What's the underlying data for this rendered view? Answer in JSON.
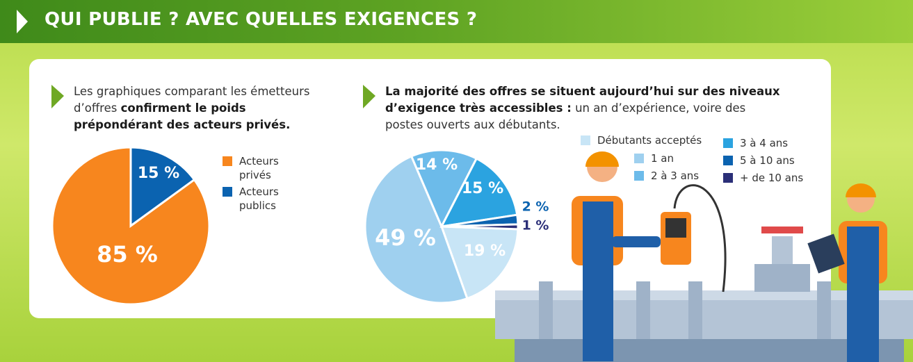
{
  "header": {
    "title": "QUI PUBLIE ?  AVEC QUELLES EXIGENCES ?"
  },
  "chart_data": [
    {
      "type": "pie",
      "intro": [
        "Les graphiques comparant les émetteurs d’offres ",
        "confirment le poids prépondérant des acteurs privés."
      ],
      "categories": [
        "Acteurs privés",
        "Acteurs publics"
      ],
      "values": [
        85,
        15
      ],
      "value_labels": [
        "85 %",
        "15 %"
      ],
      "colors": [
        "#f7861e",
        "#0b63b0"
      ]
    },
    {
      "type": "pie",
      "intro": [
        "La majorité des offres se situent aujourd’hui sur des niveaux d’exigence très accessibles :",
        " un an d’expérience, voire des postes ouverts aux débutants."
      ],
      "categories": [
        "Débutants acceptés",
        "1 an",
        "2 à 3 ans",
        "3 à 4 ans",
        "5 à 10 ans",
        "+ de 10 ans"
      ],
      "values": [
        19,
        49,
        14,
        15,
        2,
        1
      ],
      "value_labels": [
        "19 %",
        "49 %",
        "14 %",
        "15 %",
        "2 %",
        "1 %"
      ],
      "colors": [
        "#c8e5f6",
        "#9fd0ef",
        "#6cbbea",
        "#2ba3e0",
        "#0b63b0",
        "#2b2f78"
      ]
    }
  ]
}
